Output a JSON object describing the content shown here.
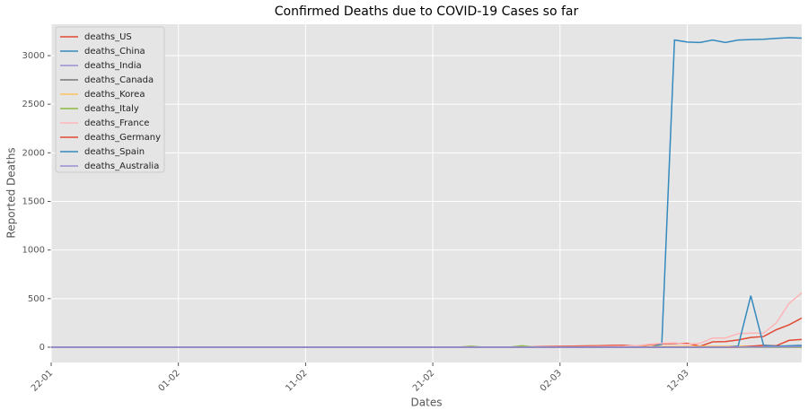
{
  "chart_data": {
    "type": "line",
    "title": "Confirmed Deaths due to COVID-19 Cases so far",
    "xlabel": "Dates",
    "ylabel": "Reported Deaths",
    "categories": [
      "22-01",
      null,
      null,
      null,
      null,
      null,
      null,
      null,
      null,
      null,
      "01-02",
      null,
      null,
      null,
      null,
      null,
      null,
      null,
      null,
      null,
      "11-02",
      null,
      null,
      null,
      null,
      null,
      null,
      null,
      null,
      null,
      "21-02",
      null,
      null,
      null,
      null,
      null,
      null,
      null,
      null,
      null,
      "02-03",
      null,
      null,
      null,
      null,
      null,
      null,
      null,
      null,
      null,
      "12-03",
      null,
      null,
      null,
      null,
      null,
      null,
      null,
      null,
      null
    ],
    "series": [
      {
        "name": "deaths_US",
        "color": "#E24A33",
        "values": [
          0,
          0,
          0,
          0,
          0,
          0,
          0,
          0,
          0,
          0,
          0,
          0,
          0,
          0,
          0,
          0,
          0,
          0,
          0,
          0,
          0,
          0,
          0,
          0,
          0,
          0,
          0,
          0,
          0,
          0,
          0,
          0,
          0,
          0,
          0,
          0,
          0,
          0,
          5,
          8,
          10,
          12,
          14,
          15,
          18,
          20,
          12,
          25,
          35,
          38,
          40,
          10,
          55,
          58,
          75,
          100,
          110,
          180,
          230,
          300
        ]
      },
      {
        "name": "deaths_China",
        "color": "#348ABD",
        "values": [
          0,
          0,
          0,
          0,
          0,
          0,
          0,
          0,
          0,
          0,
          0,
          0,
          0,
          0,
          0,
          0,
          0,
          0,
          0,
          0,
          0,
          0,
          0,
          0,
          0,
          0,
          0,
          0,
          0,
          0,
          0,
          0,
          0,
          0,
          0,
          0,
          0,
          0,
          0,
          0,
          0,
          0,
          0,
          0,
          0,
          0,
          0,
          0,
          30,
          3160,
          3140,
          3135,
          3160,
          3135,
          3160,
          3165,
          3168,
          3178,
          3185,
          3180
        ]
      },
      {
        "name": "deaths_India",
        "color": "#988ED5",
        "values": [
          0,
          0,
          0,
          0,
          0,
          0,
          0,
          0,
          0,
          0,
          0,
          0,
          0,
          0,
          0,
          0,
          0,
          0,
          0,
          0,
          0,
          0,
          0,
          0,
          0,
          0,
          0,
          0,
          0,
          0,
          0,
          0,
          0,
          0,
          0,
          0,
          0,
          0,
          0,
          0,
          0,
          0,
          0,
          0,
          0,
          0,
          0,
          0,
          0,
          0,
          0,
          0,
          0,
          0,
          0,
          0,
          0,
          0,
          0,
          0
        ]
      },
      {
        "name": "deaths_Canada",
        "color": "#777777",
        "values": [
          0,
          0,
          0,
          0,
          0,
          0,
          0,
          0,
          0,
          0,
          0,
          0,
          0,
          0,
          0,
          0,
          0,
          0,
          0,
          0,
          0,
          0,
          0,
          0,
          0,
          0,
          0,
          0,
          0,
          0,
          0,
          0,
          0,
          0,
          0,
          0,
          0,
          0,
          0,
          0,
          0,
          0,
          0,
          0,
          0,
          0,
          0,
          0,
          0,
          0,
          0,
          1,
          1,
          1,
          1,
          2,
          4,
          5,
          8,
          12
        ]
      },
      {
        "name": "deaths_Korea",
        "color": "#FBC15E",
        "values": [
          0,
          0,
          0,
          0,
          0,
          0,
          0,
          0,
          0,
          0,
          0,
          0,
          0,
          0,
          0,
          0,
          0,
          0,
          0,
          0,
          0,
          0,
          0,
          0,
          0,
          0,
          0,
          0,
          0,
          0,
          0,
          0,
          0,
          0,
          0,
          0,
          0,
          0,
          0,
          0,
          1,
          2,
          3,
          4,
          5,
          5,
          6,
          7,
          8,
          8,
          9,
          9,
          10,
          10,
          11,
          11,
          12,
          12,
          13,
          13
        ]
      },
      {
        "name": "deaths_Italy",
        "color": "#8EBA42",
        "values": [
          0,
          0,
          0,
          0,
          0,
          0,
          0,
          0,
          0,
          0,
          0,
          0,
          0,
          0,
          0,
          0,
          0,
          0,
          0,
          0,
          0,
          0,
          0,
          0,
          0,
          0,
          0,
          0,
          0,
          0,
          0,
          0,
          0,
          10,
          0,
          0,
          0,
          15,
          0,
          0,
          0,
          0,
          0,
          0,
          0,
          0,
          0,
          0,
          0,
          0,
          0,
          0,
          0,
          0,
          0,
          0,
          0,
          0,
          0,
          0
        ]
      },
      {
        "name": "deaths_France",
        "color": "#FFB5B8",
        "values": [
          0,
          0,
          0,
          0,
          0,
          0,
          0,
          0,
          0,
          0,
          0,
          0,
          0,
          0,
          0,
          0,
          0,
          0,
          0,
          0,
          0,
          0,
          0,
          0,
          0,
          0,
          0,
          0,
          0,
          0,
          0,
          0,
          0,
          0,
          0,
          0,
          0,
          0,
          2,
          3,
          4,
          5,
          5,
          6,
          8,
          10,
          15,
          30,
          40,
          45,
          30,
          40,
          95,
          95,
          140,
          145,
          145,
          250,
          450,
          560
        ]
      },
      {
        "name": "deaths_Germany",
        "color": "#E24A33",
        "values": [
          0,
          0,
          0,
          0,
          0,
          0,
          0,
          0,
          0,
          0,
          0,
          0,
          0,
          0,
          0,
          0,
          0,
          0,
          0,
          0,
          0,
          0,
          0,
          0,
          0,
          0,
          0,
          0,
          0,
          0,
          0,
          0,
          0,
          0,
          0,
          0,
          0,
          0,
          0,
          0,
          0,
          0,
          0,
          0,
          0,
          0,
          0,
          0,
          0,
          0,
          0,
          0,
          0,
          0,
          0,
          10,
          20,
          15,
          70,
          80
        ]
      },
      {
        "name": "deaths_Spain",
        "color": "#348ABD",
        "values": [
          0,
          0,
          0,
          0,
          0,
          0,
          0,
          0,
          0,
          0,
          0,
          0,
          0,
          0,
          0,
          0,
          0,
          0,
          0,
          0,
          0,
          0,
          0,
          0,
          0,
          0,
          0,
          0,
          0,
          0,
          0,
          0,
          0,
          0,
          0,
          0,
          0,
          0,
          0,
          0,
          0,
          0,
          0,
          0,
          0,
          0,
          0,
          0,
          0,
          0,
          0,
          0,
          0,
          0,
          10,
          530,
          20,
          10,
          15,
          20
        ]
      },
      {
        "name": "deaths_Australia",
        "color": "#988ED5",
        "values": [
          0,
          0,
          0,
          0,
          0,
          0,
          0,
          0,
          0,
          0,
          0,
          0,
          0,
          0,
          0,
          0,
          0,
          0,
          0,
          0,
          0,
          0,
          0,
          0,
          0,
          0,
          0,
          0,
          0,
          0,
          0,
          0,
          0,
          0,
          0,
          0,
          0,
          0,
          0,
          0,
          0,
          0,
          0,
          0,
          0,
          0,
          0,
          0,
          0,
          0,
          1,
          1,
          1,
          2,
          2,
          3,
          3,
          4,
          5,
          7
        ]
      }
    ],
    "ylim": [
      -157,
      3323
    ],
    "yticks": [
      0,
      500,
      1000,
      1500,
      2000,
      2500,
      3000
    ],
    "grid": true,
    "legend": "upper left"
  }
}
